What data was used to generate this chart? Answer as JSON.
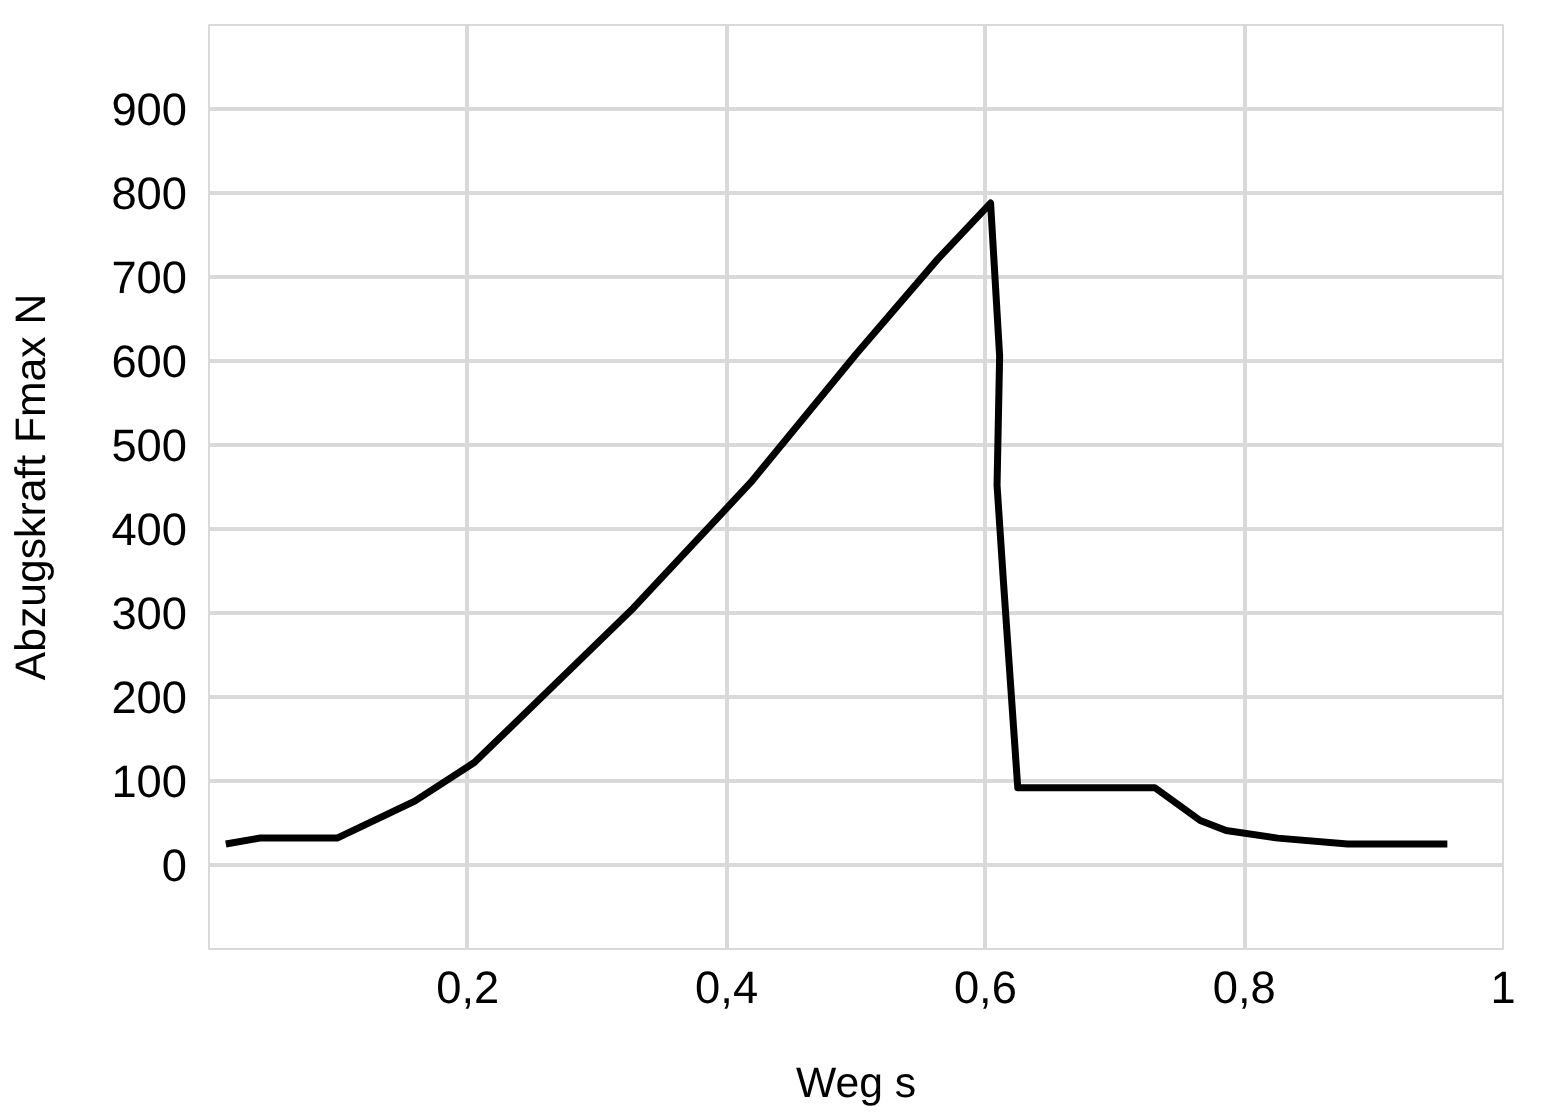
{
  "chart_data": {
    "type": "line",
    "xlabel": "Weg s",
    "ylabel": "Abzugskraft Fmax N",
    "x": [
      0.013,
      0.039,
      0.099,
      0.159,
      0.205,
      0.328,
      0.419,
      0.5,
      0.563,
      0.604,
      0.611,
      0.609,
      0.614,
      0.625,
      0.731,
      0.766,
      0.786,
      0.826,
      0.88,
      0.957
    ],
    "series": [
      {
        "color": "#000000",
        "values": [
          25,
          32,
          32,
          76,
          122,
          306,
          456,
          608,
          721,
          788,
          606,
          452,
          336,
          92,
          92,
          53,
          41,
          32,
          25,
          25
        ]
      }
    ],
    "xlim": [
      0,
      1
    ],
    "xticks": [
      {
        "value": 0,
        "label": null
      },
      {
        "value": 0.2,
        "label": "0,2"
      },
      {
        "value": 0.4,
        "label": "0,4"
      },
      {
        "value": 0.6,
        "label": "0,6"
      },
      {
        "value": 0.8,
        "label": "0,8"
      },
      1
    ],
    "ylim": [
      -100,
      1000
    ],
    "yticks": [
      {
        "value": -100,
        "label": null
      },
      0,
      100,
      200,
      300,
      400,
      500,
      600,
      700,
      800,
      900,
      {
        "value": 1000,
        "label": null
      }
    ],
    "grid": true,
    "marker": "none",
    "line_style": "solid"
  }
}
